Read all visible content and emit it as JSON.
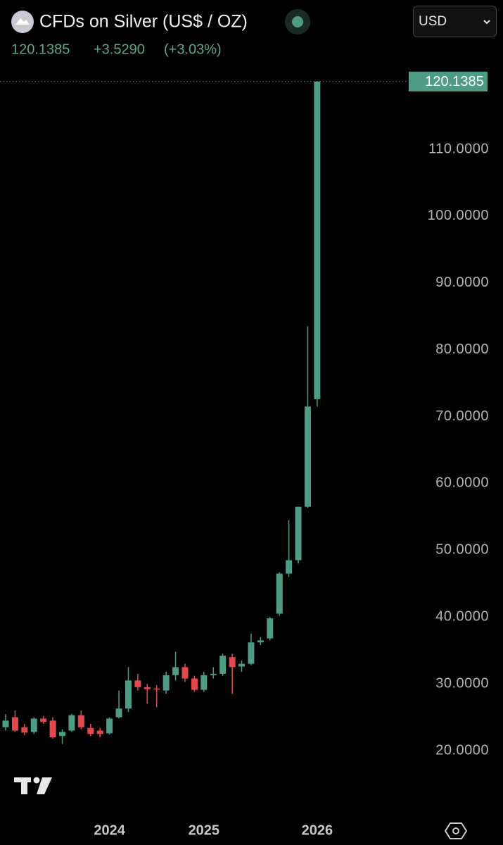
{
  "header": {
    "title": "CFDs on Silver (US$ / OZ)",
    "change": "+3.5290",
    "change_percent": "(+3.03%)",
    "currency": "USD"
  },
  "chart_data": {
    "type": "candlestick",
    "categories": [
      null,
      null,
      null,
      null,
      null,
      null,
      null,
      null,
      null,
      null,
      null,
      "2024",
      null,
      null,
      null,
      null,
      null,
      null,
      null,
      null,
      null,
      "2025",
      null,
      null,
      null,
      null,
      null,
      null,
      null,
      null,
      null,
      null,
      null,
      "2026"
    ],
    "open": [
      23.5,
      25.0,
      23.5,
      22.8,
      24.8,
      24.5,
      22.2,
      23.0,
      25.3,
      23.4,
      23.0,
      22.6,
      25.0,
      26.3,
      30.5,
      29.5,
      29.3,
      29.0,
      31.3,
      32.5,
      30.8,
      29.1,
      31.3,
      31.5,
      34.0,
      32.6,
      33.0,
      36.2,
      36.8,
      40.5,
      46.5,
      48.5,
      56.5,
      72.6
    ],
    "high": [
      25.5,
      26.0,
      24.0,
      25.0,
      25.2,
      25.0,
      23.2,
      25.5,
      26.0,
      24.0,
      23.4,
      25.0,
      29.0,
      32.5,
      31.5,
      30.0,
      29.8,
      31.8,
      34.8,
      33.0,
      31.2,
      31.8,
      32.5,
      34.5,
      34.5,
      33.5,
      37.5,
      37.0,
      40.0,
      46.7,
      54.5,
      56.5,
      83.5,
      120.1385
    ],
    "low": [
      23.0,
      22.8,
      22.3,
      22.5,
      24.0,
      21.8,
      21.0,
      22.8,
      23.2,
      22.2,
      22.0,
      22.4,
      24.8,
      25.8,
      29.0,
      27.0,
      26.5,
      28.5,
      30.5,
      30.3,
      28.8,
      28.8,
      30.8,
      31.2,
      28.5,
      31.8,
      32.8,
      35.8,
      36.5,
      40.2,
      46.0,
      48.0,
      56.3,
      71.5
    ],
    "close": [
      24.5,
      23.0,
      22.7,
      24.8,
      24.3,
      22.0,
      22.8,
      25.3,
      23.5,
      22.5,
      22.5,
      24.8,
      26.3,
      30.5,
      29.5,
      29.2,
      29.2,
      31.3,
      32.5,
      30.8,
      29.1,
      31.3,
      31.5,
      34.2,
      32.5,
      33.0,
      36.2,
      36.5,
      39.8,
      46.5,
      48.5,
      56.5,
      71.5,
      120.1385
    ],
    "up_color": "#4f9c86",
    "down_color": "#e2494f",
    "last_value": 120.1385,
    "ylim": [
      11.15,
      121.8
    ],
    "yticks": [
      {
        "value": 20,
        "label": "20.0000"
      },
      {
        "value": 30,
        "label": "30.0000"
      },
      {
        "value": 40,
        "label": "40.0000"
      },
      {
        "value": 50,
        "label": "50.0000"
      },
      {
        "value": 60,
        "label": "60.0000"
      },
      {
        "value": 70,
        "label": "70.0000"
      },
      {
        "value": 80,
        "label": "80.0000"
      },
      {
        "value": 90,
        "label": "90.0000"
      },
      {
        "value": 100,
        "label": "100.0000"
      },
      {
        "value": 110,
        "label": "110.0000"
      }
    ]
  }
}
